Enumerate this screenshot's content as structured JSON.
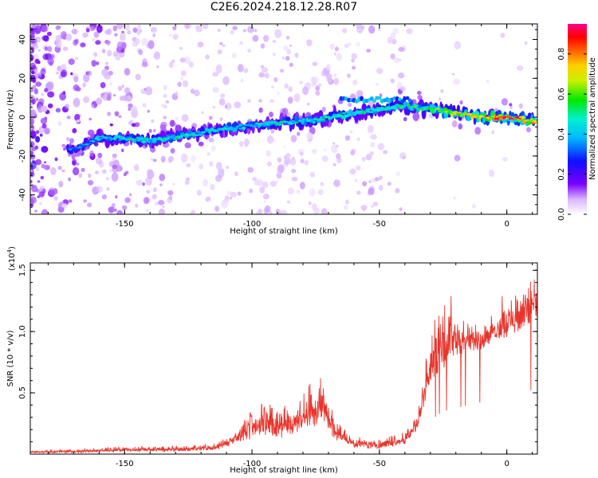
{
  "title": "C2E6.2024.218.12.28.R07",
  "colors": {
    "snr_line": "#e8352c",
    "axis": "#000000",
    "background": "#ffffff"
  },
  "chart_data": [
    {
      "type": "heatmap",
      "name": "spectrogram",
      "title": "C2E6.2024.218.12.28.R07",
      "xlabel": "Height of straight line (km)",
      "ylabel": "Frequency (Hz)",
      "xlim": [
        -187,
        12
      ],
      "ylim": [
        -50,
        48
      ],
      "xticks": [
        -150,
        -100,
        -50,
        0
      ],
      "yticks": [
        -40,
        -20,
        0,
        20,
        40
      ],
      "grid": false,
      "colorbar": {
        "label": "Normalized spectral amplitude",
        "range": [
          0,
          0.95
        ],
        "ticks": [
          "0.0",
          "0.2",
          "0.4",
          "0.6",
          "0.8"
        ],
        "colormap": "rainbow (white-violet-blue-cyan-green-yellow-orange-red-magenta)"
      },
      "ridge": {
        "description": "main spectral ridge (frequency vs height)",
        "x": [
          -170,
          -160,
          -150,
          -140,
          -130,
          -120,
          -110,
          -100,
          -90,
          -80,
          -70,
          -60,
          -50,
          -40,
          -30,
          -20,
          -10,
          0,
          10
        ],
        "y": [
          -17,
          -11,
          -11,
          -12,
          -10,
          -8,
          -6,
          -4,
          -3,
          -2,
          0,
          2,
          4,
          6,
          4,
          2,
          0,
          0,
          -2
        ],
        "peak_amplitude": [
          0.35,
          0.45,
          0.5,
          0.5,
          0.5,
          0.45,
          0.45,
          0.45,
          0.5,
          0.5,
          0.5,
          0.5,
          0.55,
          0.55,
          0.6,
          0.7,
          0.85,
          0.9,
          0.8
        ]
      }
    },
    {
      "type": "line",
      "name": "snr",
      "xlabel": "Height of straight line (km)",
      "ylabel": "SNR (10 * v/v)",
      "y_multiplier_label": "(x10",
      "y_multiplier_exponent": "4",
      "y_multiplier_close": ")",
      "xlim": [
        -187,
        12
      ],
      "ylim": [
        0,
        1.56
      ],
      "xticks": [
        -150,
        -100,
        -50,
        0
      ],
      "yticks": [
        "0.5",
        "1.0",
        "1.5"
      ],
      "grid": false,
      "envelope": {
        "description": "approximate upper envelope of the noisy SNR trace, y in units of 10^4",
        "x": [
          -187,
          -170,
          -150,
          -130,
          -115,
          -105,
          -100,
          -95,
          -90,
          -85,
          -80,
          -75,
          -72,
          -68,
          -60,
          -50,
          -40,
          -35,
          -30,
          -25,
          -20,
          -15,
          -10,
          -5,
          0,
          5,
          10,
          12
        ],
        "y": [
          0.03,
          0.04,
          0.06,
          0.07,
          0.08,
          0.25,
          0.35,
          0.45,
          0.35,
          0.42,
          0.5,
          0.6,
          0.72,
          0.3,
          0.15,
          0.12,
          0.18,
          0.35,
          1.0,
          1.15,
          1.3,
          1.1,
          1.05,
          1.2,
          1.3,
          1.35,
          1.55,
          1.4
        ],
        "baseline": [
          0.01,
          0.01,
          0.02,
          0.02,
          0.03,
          0.08,
          0.12,
          0.15,
          0.12,
          0.15,
          0.18,
          0.2,
          0.25,
          0.12,
          0.05,
          0.04,
          0.08,
          0.2,
          0.55,
          0.7,
          0.75,
          0.8,
          0.85,
          0.9,
          0.95,
          1.0,
          1.05,
          1.0
        ]
      }
    }
  ]
}
